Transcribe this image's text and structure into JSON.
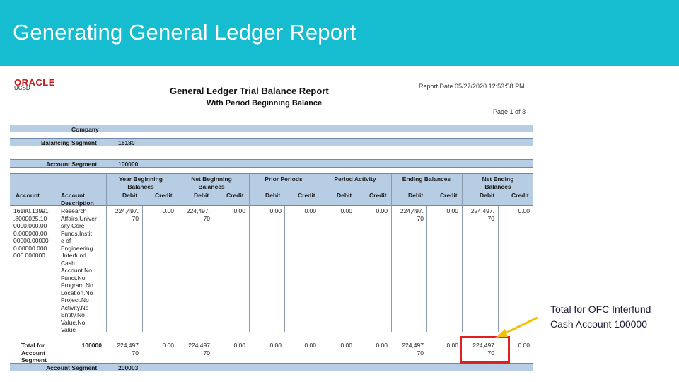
{
  "slide": {
    "title": "Generating General Ledger Report"
  },
  "report": {
    "logo_text": "ORACLE",
    "org": "UCSD",
    "title": "General Ledger Trial Balance Report",
    "subtitle": "With Period Beginning Balance",
    "report_date": "Report Date 05/27/2020 12:53:58 PM",
    "page": "Page 1 of 3",
    "company_label": "Company",
    "balancing_label": "Balancing Segment",
    "balancing_value": "16180",
    "account_segment_label": "Account Segment",
    "account_segment_value": "100000",
    "columns": {
      "account": "Account",
      "account_desc_1": "Account",
      "account_desc_2": "Description",
      "year_beginning_1": "Year Beginning",
      "year_beginning_2": "Balances",
      "net_beginning_1": "Net Beginning",
      "net_beginning_2": "Balances",
      "prior_periods": "Prior Periods",
      "period_activity": "Period Activity",
      "ending_balances": "Ending Balances",
      "net_ending_1": "Net Ending",
      "net_ending_2": "Balances",
      "debit": "Debit",
      "credit": "Credit"
    },
    "row": {
      "account": [
        "16180.13991",
        ".8000025.10",
        "0000.000.00",
        "0.000000.00",
        "00000.00000",
        "0.00000.000",
        "000.000000"
      ],
      "description": [
        "Research",
        "Affairs.Univer",
        "sity Core",
        "Funds.Instit",
        "e of",
        "Engineering",
        ".Interfund",
        "Cash",
        "Account.No",
        "Funct.No",
        "Program.No",
        "Location.No",
        "Project.No",
        "Activity.No",
        "Entity.No",
        "Value.No",
        "Value"
      ],
      "yb_debit": [
        "224,497.",
        "70"
      ],
      "yb_credit": "0.00",
      "nb_debit": [
        "224,497.",
        "70"
      ],
      "nb_credit": "0.00",
      "pp_debit": "0.00",
      "pp_credit": "0.00",
      "pa_debit": "0.00",
      "pa_credit": "0.00",
      "eb_debit": [
        "224,497.",
        "70"
      ],
      "eb_credit": "0.00",
      "ne_debit": [
        "224,497.",
        "70"
      ],
      "ne_credit": "0.00"
    },
    "total_row": {
      "label_1": "Total for",
      "label_2": "Account",
      "label_3": "Segment",
      "segment": "100000",
      "yb_debit": [
        "224,497",
        "70"
      ],
      "yb_credit": "0.00",
      "nb_debit": [
        "224,497",
        "70"
      ],
      "nb_credit": "0.00",
      "pp_debit": "0.00",
      "pp_credit": "0.00",
      "pa_debit": "0.00",
      "pa_credit": "0.00",
      "eb_debit": [
        "224,497",
        "70"
      ],
      "eb_credit": "0.00",
      "ne_debit": [
        "224,497",
        "70"
      ],
      "ne_credit": "0.00"
    },
    "next_segment_label": "Account Segment",
    "next_segment_value": "200003"
  },
  "callout": {
    "text_line1": "Total for OFC Interfund",
    "text_line2": "Cash Account 100000"
  },
  "colors": {
    "title_bar": "#16bdd0",
    "highlight_box": "#e02020",
    "arrow": "#f2c200",
    "header_band": "#b7cde4"
  }
}
